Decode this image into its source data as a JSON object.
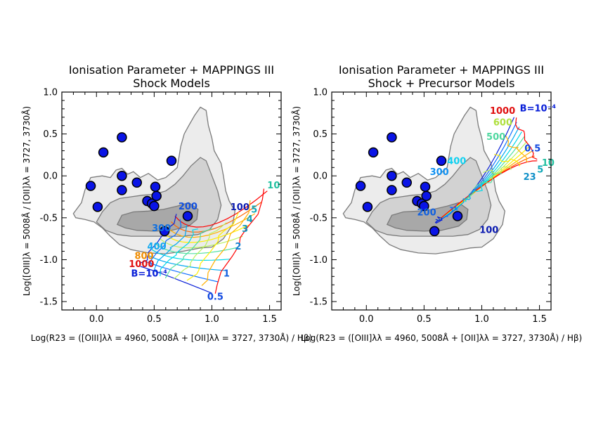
{
  "colors": {
    "contour_outer": "#ececec",
    "contour_mid": "#d2d2d2",
    "contour_inner": "#a8a8a8",
    "contour_line": "#7a7a7a",
    "points": "#0a14e6",
    "grid_palette": [
      "#ff0000",
      "#ff6600",
      "#ffb000",
      "#ffee00",
      "#b8f060",
      "#50e0a0",
      "#00d8e8",
      "#00a8f0",
      "#1070ff",
      "#0a20d8"
    ]
  },
  "chart_data": [
    {
      "type": "scatter",
      "title": "Ionisation Parameter  +  MAPPINGS III\nShock Models",
      "xlabel": "Log(R23 = ([OIII]λλ = 4960, 5008Å + [OII]λλ = 3727, 3730Å) / Hβ)",
      "ylabel": "Log([OIII]λ = 5008Å / [OII]λλ = 3727, 3730Å)",
      "xlim": [
        -0.3,
        1.6
      ],
      "ylim": [
        -1.6,
        1.0
      ],
      "xticks": [
        "0.0",
        "0.5",
        "1.0",
        "1.5"
      ],
      "yticks": [
        "1.0",
        "0.5",
        "0.0",
        "-0.5",
        "-1.0",
        "-1.5"
      ],
      "grid": false,
      "points": [
        {
          "x": -0.05,
          "y": -0.12
        },
        {
          "x": 0.01,
          "y": -0.37
        },
        {
          "x": 0.06,
          "y": 0.28
        },
        {
          "x": 0.22,
          "y": 0.46
        },
        {
          "x": 0.22,
          "y": 0.0
        },
        {
          "x": 0.22,
          "y": -0.17
        },
        {
          "x": 0.35,
          "y": -0.08
        },
        {
          "x": 0.44,
          "y": -0.3
        },
        {
          "x": 0.48,
          "y": -0.33
        },
        {
          "x": 0.5,
          "y": -0.36
        },
        {
          "x": 0.51,
          "y": -0.13
        },
        {
          "x": 0.52,
          "y": -0.24
        },
        {
          "x": 0.59,
          "y": -0.66
        },
        {
          "x": 0.65,
          "y": 0.18
        },
        {
          "x": 0.79,
          "y": -0.48
        }
      ],
      "velocity_labels": [
        {
          "text": "1000",
          "x": 0.28,
          "y": -1.09,
          "color": "#e01010"
        },
        {
          "text": "800",
          "x": 0.33,
          "y": -0.99,
          "color": "#f08c00"
        },
        {
          "text": "400",
          "x": 0.44,
          "y": -0.88,
          "color": "#10a8f0"
        },
        {
          "text": "300",
          "x": 0.48,
          "y": -0.66,
          "color": "#1070e0"
        },
        {
          "text": "200",
          "x": 0.71,
          "y": -0.4,
          "color": "#1050e0"
        },
        {
          "text": "100",
          "x": 1.16,
          "y": -0.41,
          "color": "#0a1ab0"
        },
        {
          "text": "B=10⁻⁴",
          "x": 0.3,
          "y": -1.2,
          "color": "#0a20d8"
        }
      ],
      "parameter_labels": [
        {
          "text": "10",
          "x": 1.48,
          "y": -0.15,
          "color": "#20c0a0"
        },
        {
          "text": "5",
          "x": 1.34,
          "y": -0.44,
          "color": "#10a8b8"
        },
        {
          "text": "4",
          "x": 1.3,
          "y": -0.55,
          "color": "#10a0b8"
        },
        {
          "text": "3",
          "x": 1.26,
          "y": -0.67,
          "color": "#1098c0"
        },
        {
          "text": "2",
          "x": 1.2,
          "y": -0.88,
          "color": "#1080d0"
        },
        {
          "text": "1",
          "x": 1.1,
          "y": -1.2,
          "color": "#1060e0"
        },
        {
          "text": "0.5",
          "x": 0.96,
          "y": -1.48,
          "color": "#1048e0"
        }
      ]
    },
    {
      "type": "scatter",
      "title": "Ionisation Parameter  +  MAPPINGS III\nShock + Precursor Models",
      "xlabel": "Log(R23 = ([OIII]λλ = 4960, 5008Å + [OII]λλ = 3727, 3730Å) / Hβ)",
      "ylabel": "Log([OIII]λ = 5008Å / [OII]λλ = 3727, 3730Å)",
      "xlim": [
        -0.3,
        1.6
      ],
      "ylim": [
        -1.6,
        1.0
      ],
      "xticks": [
        "0.0",
        "0.5",
        "1.0",
        "1.5"
      ],
      "yticks": [
        "1.0",
        "0.5",
        "0.0",
        "-0.5",
        "-1.0",
        "-1.5"
      ],
      "grid": false,
      "points": [
        {
          "x": -0.05,
          "y": -0.12
        },
        {
          "x": 0.01,
          "y": -0.37
        },
        {
          "x": 0.06,
          "y": 0.28
        },
        {
          "x": 0.22,
          "y": 0.46
        },
        {
          "x": 0.22,
          "y": 0.0
        },
        {
          "x": 0.22,
          "y": -0.17
        },
        {
          "x": 0.35,
          "y": -0.08
        },
        {
          "x": 0.44,
          "y": -0.3
        },
        {
          "x": 0.48,
          "y": -0.33
        },
        {
          "x": 0.5,
          "y": -0.36
        },
        {
          "x": 0.51,
          "y": -0.13
        },
        {
          "x": 0.52,
          "y": -0.24
        },
        {
          "x": 0.59,
          "y": -0.66
        },
        {
          "x": 0.65,
          "y": 0.18
        },
        {
          "x": 0.79,
          "y": -0.48
        }
      ],
      "velocity_labels": [
        {
          "text": "1000",
          "x": 1.07,
          "y": 0.74,
          "color": "#e01010"
        },
        {
          "text": "600",
          "x": 1.1,
          "y": 0.6,
          "color": "#b0e040"
        },
        {
          "text": "500",
          "x": 1.04,
          "y": 0.43,
          "color": "#50d8a0"
        },
        {
          "text": "400",
          "x": 0.7,
          "y": 0.14,
          "color": "#10d0f0"
        },
        {
          "text": "300",
          "x": 0.55,
          "y": 0.01,
          "color": "#1090f0"
        },
        {
          "text": "200",
          "x": 0.44,
          "y": -0.47,
          "color": "#1060e0"
        },
        {
          "text": "100",
          "x": 0.98,
          "y": -0.68,
          "color": "#0a1ab0"
        },
        {
          "text": "B=10⁻⁴",
          "x": 1.33,
          "y": 0.77,
          "color": "#0a20d8"
        }
      ],
      "parameter_labels": [
        {
          "text": "0.5",
          "x": 1.37,
          "y": 0.29,
          "color": "#1048e0"
        },
        {
          "text": "10",
          "x": 1.52,
          "y": 0.12,
          "color": "#20c0a0"
        },
        {
          "text": "5",
          "x": 1.48,
          "y": 0.04,
          "color": "#10a8b8"
        },
        {
          "text": "23",
          "x": 1.36,
          "y": -0.05,
          "color": "#1090c8"
        }
      ]
    }
  ]
}
